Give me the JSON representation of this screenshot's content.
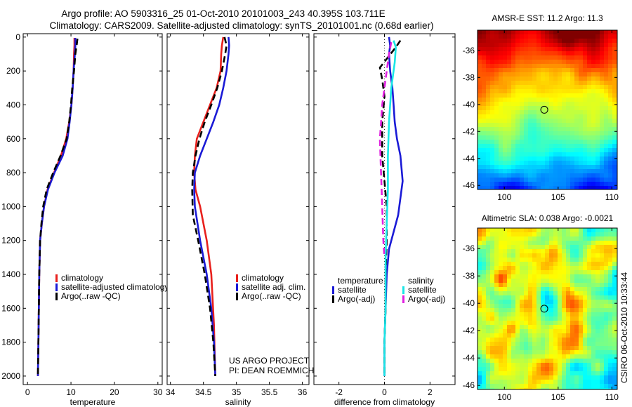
{
  "header": {
    "line1": "Argo profile: AO 5903316_25 01-Oct-2010 20101003_243 40.395S 103.711E",
    "line2": "Climatology: CARS2009. Satellite-adjusted climatology: synTS_20101001.nc (0.68d earlier)"
  },
  "credit": {
    "project": "US ARGO PROJECT",
    "pi": "PI: DEAN ROEMMICH",
    "stamp": "CSIRO 06-Oct-2010 10:33:44"
  },
  "colors": {
    "climatology": "#e8201c",
    "satellite": "#1a1ad6",
    "argo": "#000000",
    "satellite_salinity": "#19e6e6",
    "argo_salinity": "#e020e0"
  },
  "chart_data": [
    {
      "type": "line",
      "panel": "temperature",
      "xlabel": "temperature",
      "xlim": [
        -1,
        31
      ],
      "xticks": [
        0,
        10,
        20,
        30
      ],
      "ylim": [
        2050,
        -20
      ],
      "yticks": [
        0,
        200,
        400,
        600,
        800,
        1000,
        1200,
        1400,
        1600,
        1800,
        2000
      ],
      "y_reversed": true,
      "legend": [
        "climatology",
        "satellite-adjusted climatology",
        "Argo(..raw -QC)"
      ],
      "series": [
        {
          "name": "climatology",
          "color": "#e8201c",
          "x": [
            10.8,
            10.8,
            10.7,
            10.6,
            10.4,
            10.1,
            9.6,
            8.9,
            7.7,
            6.1,
            4.6,
            3.8,
            3.3,
            2.9,
            2.7,
            2.6,
            2.5,
            2.4
          ],
          "y": [
            5,
            50,
            100,
            200,
            300,
            400,
            500,
            600,
            700,
            800,
            900,
            1000,
            1100,
            1200,
            1400,
            1600,
            1800,
            2000
          ]
        },
        {
          "name": "satellite-adjusted climatology",
          "color": "#1a1ad6",
          "x": [
            11.0,
            11.0,
            10.9,
            10.6,
            10.4,
            10.1,
            9.7,
            9.2,
            8.1,
            6.2,
            4.7,
            3.8,
            3.3,
            2.9,
            2.7,
            2.6,
            2.5,
            2.4
          ],
          "y": [
            5,
            50,
            100,
            200,
            300,
            400,
            500,
            600,
            700,
            800,
            900,
            1000,
            1100,
            1200,
            1400,
            1600,
            1800,
            2000
          ]
        },
        {
          "name": "Argo(..raw -QC)",
          "color": "#000000",
          "dash": true,
          "x": [
            11.5,
            11.3,
            11.0,
            10.7,
            10.3,
            10.0,
            9.6,
            9.0,
            7.6,
            5.9,
            4.4,
            3.6,
            3.2,
            2.9,
            2.7,
            2.6,
            2.5,
            2.4
          ],
          "y": [
            10,
            50,
            100,
            200,
            300,
            400,
            500,
            600,
            700,
            800,
            900,
            1000,
            1100,
            1200,
            1400,
            1600,
            1800,
            2000
          ]
        }
      ]
    },
    {
      "type": "line",
      "panel": "salinity",
      "xlabel": "salinity",
      "xlim": [
        33.95,
        36.1
      ],
      "xticks": [
        34,
        34.5,
        35,
        35.5,
        36
      ],
      "ylim": [
        2050,
        -20
      ],
      "yticks": [
        0,
        200,
        400,
        600,
        800,
        1000,
        1200,
        1400,
        1600,
        1800,
        2000
      ],
      "y_reversed": true,
      "legend": [
        "climatology",
        "satellite adj. clim.",
        "Argo(..raw -QC)"
      ],
      "series": [
        {
          "name": "climatology",
          "color": "#e8201c",
          "x": [
            34.8,
            34.78,
            34.77,
            34.76,
            34.7,
            34.6,
            34.5,
            34.4,
            34.37,
            34.36,
            34.38,
            34.45,
            34.55,
            34.62,
            34.66,
            34.68
          ],
          "y": [
            0,
            50,
            100,
            200,
            300,
            400,
            500,
            600,
            700,
            800,
            900,
            1000,
            1200,
            1400,
            1700,
            2000
          ]
        },
        {
          "name": "satellite adj. clim.",
          "color": "#1a1ad6",
          "x": [
            34.88,
            34.89,
            34.88,
            34.85,
            34.8,
            34.74,
            34.65,
            34.55,
            34.45,
            34.37,
            34.36,
            34.37,
            34.45,
            34.55,
            34.62,
            34.66,
            34.68
          ],
          "y": [
            0,
            50,
            100,
            200,
            300,
            400,
            500,
            600,
            700,
            800,
            900,
            1000,
            1200,
            1400,
            1600,
            1800,
            2000
          ]
        },
        {
          "name": "Argo(..raw -QC)",
          "color": "#000000",
          "dash": true,
          "x": [
            34.82,
            34.85,
            34.83,
            34.78,
            34.71,
            34.62,
            34.52,
            34.44,
            34.38,
            34.34,
            34.33,
            34.34,
            34.42,
            34.52,
            34.6,
            34.65,
            34.68
          ],
          "y": [
            0,
            50,
            100,
            200,
            300,
            400,
            500,
            600,
            700,
            800,
            900,
            1050,
            1200,
            1400,
            1600,
            1800,
            2000
          ]
        }
      ]
    },
    {
      "type": "line",
      "panel": "difference",
      "xlabel": "difference from climatology",
      "xlim": [
        -3.1,
        3.1
      ],
      "xticks": [
        -2,
        0,
        2
      ],
      "ylim": [
        2050,
        -20
      ],
      "yticks": [
        0,
        200,
        400,
        600,
        800,
        1000,
        1200,
        1400,
        1600,
        1800,
        2000
      ],
      "y_reversed": true,
      "legend_groups": [
        {
          "title": "temperature",
          "items": [
            "satellite",
            "Argo(-adj)"
          ]
        },
        {
          "title": "salinity",
          "items": [
            "satellite",
            "Argo(-adj)"
          ]
        }
      ],
      "series": [
        {
          "name": "temperature satellite",
          "color": "#1a1ad6",
          "x": [
            0.2,
            0.25,
            0.2,
            0.25,
            0.35,
            0.4,
            0.45,
            0.55,
            0.7,
            0.8,
            0.7,
            0.6,
            0.4,
            0.2,
            0.1,
            0.05,
            0.0,
            0.0
          ],
          "y": [
            0,
            50,
            100,
            200,
            300,
            400,
            500,
            600,
            700,
            850,
            950,
            1050,
            1150,
            1250,
            1400,
            1600,
            1800,
            2000
          ]
        },
        {
          "name": "temperature Argo(-adj)",
          "color": "#000000",
          "dash": true,
          "x": [
            0.7,
            0.5,
            -0.2,
            -0.1,
            0.0,
            -0.1,
            -0.1,
            0.0,
            0.1,
            0.1,
            0.05,
            0.05,
            0.0,
            0.0
          ],
          "y": [
            20,
            60,
            180,
            250,
            350,
            500,
            700,
            850,
            1000,
            1200,
            1400,
            1600,
            1800,
            2000
          ]
        },
        {
          "name": "salinity satellite",
          "color": "#19e6e6",
          "x": [
            0.4,
            0.5,
            0.45,
            0.3,
            0.2,
            0.15,
            0.15,
            0.1,
            0.05,
            0.05,
            0.0,
            0.0
          ],
          "y": [
            20,
            60,
            150,
            300,
            500,
            700,
            900,
            1100,
            1300,
            1600,
            1800,
            2000
          ]
        },
        {
          "name": "salinity Argo(-adj)",
          "color": "#e020e0",
          "dash": true,
          "x": [
            0.3,
            0.2,
            0.1,
            -0.1,
            -0.2,
            -0.15,
            -0.1,
            -0.05,
            0.0
          ],
          "y": [
            30,
            100,
            200,
            400,
            600,
            800,
            1000,
            1200,
            1300
          ]
        }
      ]
    },
    {
      "type": "heatmap",
      "panel": "sst-map",
      "title": "AMSR-E SST: 11.2 Argo: 11.3",
      "xlim": [
        97.5,
        110.5
      ],
      "ylim": [
        -46.3,
        -34.5
      ],
      "xticks": [
        100,
        105,
        110
      ],
      "yticks": [
        -36,
        -38,
        -40,
        -42,
        -44,
        -46
      ],
      "marker": {
        "lon": 103.711,
        "lat": -40.395
      },
      "color_bands": "warm (red) north to cool (blue) south"
    },
    {
      "type": "heatmap",
      "panel": "sla-map",
      "title": "Altimetric SLA: 0.038 Argo: -0.0021",
      "xlim": [
        97.5,
        110.5
      ],
      "ylim": [
        -46.3,
        -34.5
      ],
      "xticks": [
        100,
        105,
        110
      ],
      "yticks": [
        -36,
        -38,
        -40,
        -42,
        -44,
        -46
      ],
      "marker": {
        "lon": 103.711,
        "lat": -40.395
      }
    }
  ]
}
